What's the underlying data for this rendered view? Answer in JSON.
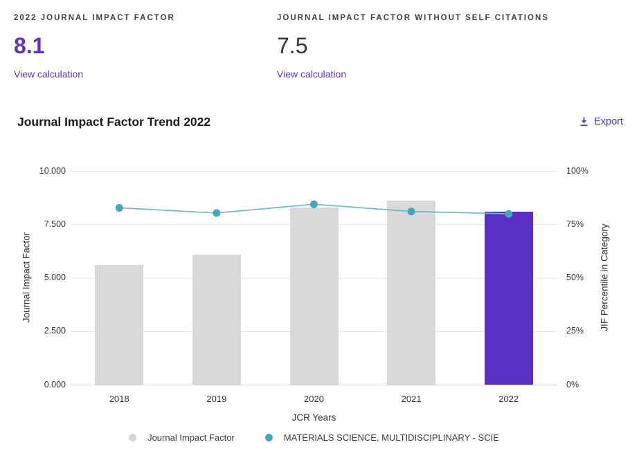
{
  "stats": {
    "jif": {
      "label": "2022 JOURNAL IMPACT FACTOR",
      "value": "8.1",
      "link": "View calculation"
    },
    "jif_without_self": {
      "label": "JOURNAL IMPACT FACTOR WITHOUT SELF CITATIONS",
      "value": "7.5",
      "link": "View calculation"
    }
  },
  "section": {
    "title": "Journal Impact Factor Trend 2022",
    "export_label": "Export"
  },
  "chart_data": {
    "type": "bar",
    "subtype": "bar+line combo",
    "categories": [
      "2018",
      "2019",
      "2020",
      "2021",
      "2022"
    ],
    "series": [
      {
        "name": "Journal Impact Factor",
        "type": "bar",
        "axis": "left",
        "values": [
          5.6,
          6.1,
          8.3,
          8.6,
          8.1
        ],
        "highlight_index": 4
      },
      {
        "name": "MATERIALS SCIENCE, MULTIDISCIPLINARY - SCIE",
        "type": "line",
        "axis": "right",
        "values": [
          82.7,
          80.3,
          84.4,
          81.0,
          79.9
        ]
      }
    ],
    "left_axis": {
      "title": "Journal Impact Factor",
      "min": 0,
      "max": 10,
      "tick_labels": [
        "0.000",
        "2.500",
        "5.000",
        "7.500",
        "10.000"
      ]
    },
    "right_axis": {
      "title": "JIF Percentile in Category",
      "min": 0,
      "max": 100,
      "tick_labels": [
        "0%",
        "25%",
        "50%",
        "75%",
        "100%"
      ]
    },
    "xlabel": "JCR Years",
    "grid": true,
    "legend_position": "bottom"
  },
  "colors": {
    "accent_purple": "#5e33bf",
    "bar_highlight": "#5a30c4",
    "bar_default": "#d9d9d9",
    "line_teal": "#6ab4c5",
    "dot_teal": "#47a4ba",
    "legend_gray_dot": "#d4d4d4",
    "gridline": "#e8e8e8",
    "axis_baseline": "#d6d6d6",
    "text_dark": "#333333"
  }
}
